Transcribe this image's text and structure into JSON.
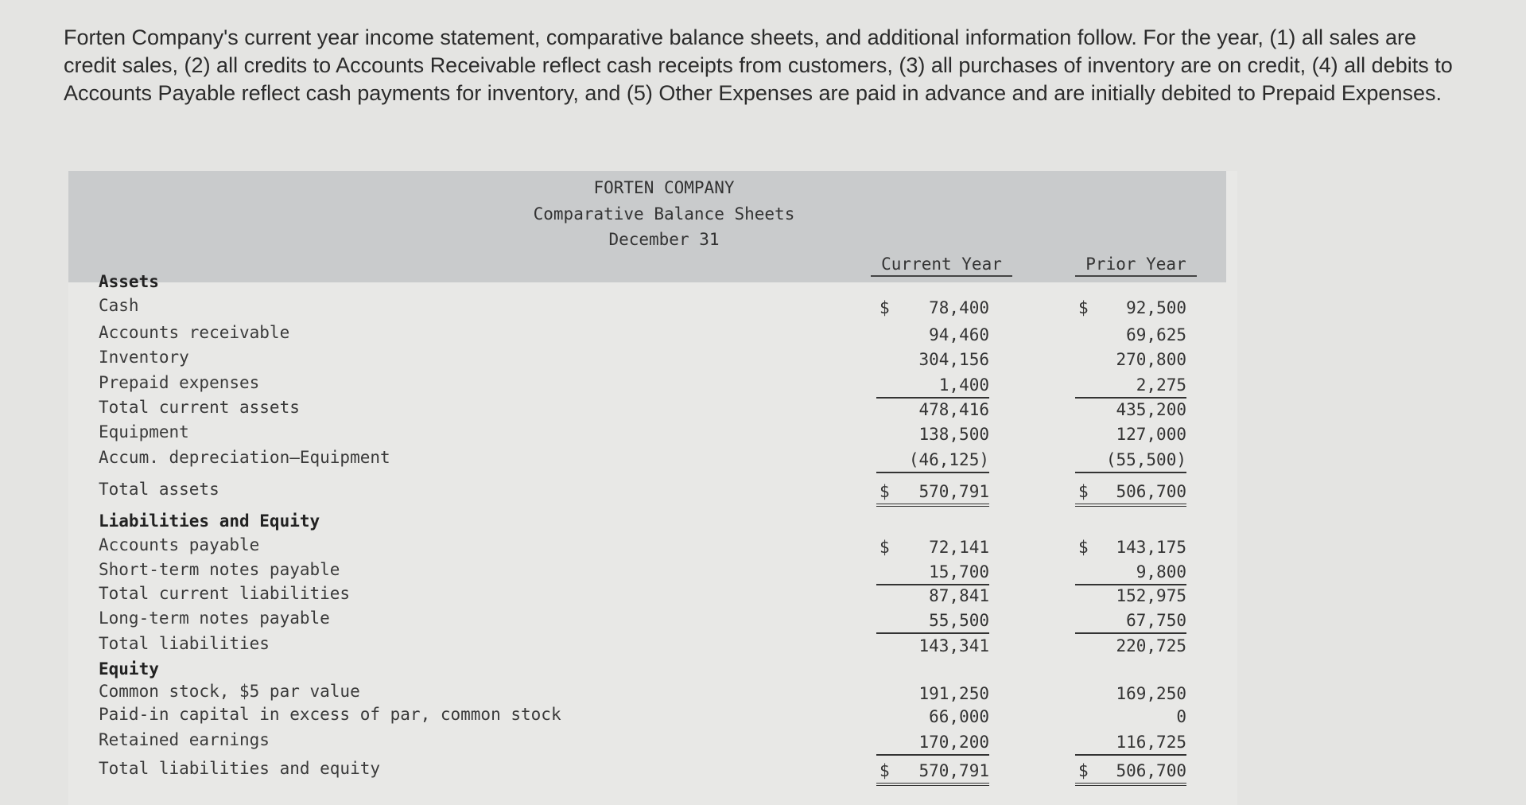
{
  "intro": "Forten Company's current year income statement, comparative balance sheets, and additional information follow. For the year, (1) all sales are credit sales, (2) all credits to Accounts Receivable reflect cash receipts from customers, (3) all purchases of inventory are on credit, (4) all debits to Accounts Payable reflect cash payments for inventory, and (5) Other Expenses are paid in advance and are initially debited to Prepaid Expenses.",
  "statement": {
    "company": "FORTEN COMPANY",
    "title": "Comparative Balance Sheets",
    "date": "December 31",
    "columns": [
      "Current Year",
      "Prior Year"
    ],
    "rows": [
      {
        "label": "Assets",
        "bold": true,
        "current": "",
        "prior": ""
      },
      {
        "label": "Cash",
        "current": "78,400",
        "prior": "92,500",
        "dollar": true
      },
      {
        "label": "Accounts receivable",
        "current": "94,460",
        "prior": "69,625"
      },
      {
        "label": "Inventory",
        "current": "304,156",
        "prior": "270,800"
      },
      {
        "label": "Prepaid expenses",
        "current": "1,400",
        "prior": "2,275",
        "line": "single"
      },
      {
        "label": "Total current assets",
        "current": "478,416",
        "prior": "435,200"
      },
      {
        "label": "Equipment",
        "current": "138,500",
        "prior": "127,000"
      },
      {
        "label": "Accum. depreciation—Equipment",
        "current": "(46,125)",
        "prior": "(55,500)",
        "line": "single"
      },
      {
        "label": "Total assets",
        "current": "570,791",
        "prior": "506,700",
        "dollar": true,
        "line": "double"
      },
      {
        "label": "Liabilities and Equity",
        "bold": true,
        "current": "",
        "prior": ""
      },
      {
        "label": "Accounts payable",
        "current": "72,141",
        "prior": "143,175",
        "dollar": true
      },
      {
        "label": "Short-term notes payable",
        "current": "15,700",
        "prior": "9,800",
        "line": "single"
      },
      {
        "label": "Total current liabilities",
        "current": "87,841",
        "prior": "152,975"
      },
      {
        "label": "Long-term notes payable",
        "current": "55,500",
        "prior": "67,750",
        "line": "single"
      },
      {
        "label": "Total liabilities",
        "current": "143,341",
        "prior": "220,725"
      },
      {
        "label": "Equity",
        "bold": true,
        "current": "",
        "prior": ""
      },
      {
        "label": "Common stock, $5 par value",
        "current": "191,250",
        "prior": "169,250"
      },
      {
        "label": "Paid-in capital in excess of par, common stock",
        "current": "66,000",
        "prior": "0"
      },
      {
        "label": "Retained earnings",
        "current": "170,200",
        "prior": "116,725",
        "line": "single"
      },
      {
        "label": "Total liabilities and equity",
        "current": "570,791",
        "prior": "506,700",
        "dollar": true,
        "line": "double"
      }
    ],
    "currency_symbol": "$"
  }
}
